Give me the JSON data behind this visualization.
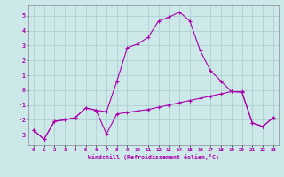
{
  "xlabel": "Windchill (Refroidissement éolien,°C)",
  "x_values": [
    0,
    1,
    2,
    3,
    4,
    5,
    6,
    7,
    8,
    9,
    10,
    11,
    12,
    13,
    14,
    15,
    16,
    17,
    18,
    19,
    20,
    21,
    22,
    23
  ],
  "y_main": [
    -2.7,
    -3.3,
    -2.1,
    -2.0,
    -1.85,
    -1.2,
    -1.35,
    -1.45,
    0.6,
    2.85,
    3.1,
    3.55,
    4.65,
    4.9,
    5.25,
    4.65,
    2.65,
    1.3,
    0.6,
    -0.1,
    -0.15,
    -2.2,
    -2.45,
    -1.85
  ],
  "y_flat": [
    -2.7,
    -3.3,
    -2.1,
    -2.0,
    -1.85,
    -1.2,
    -1.35,
    -2.95,
    -1.6,
    -1.5,
    -1.4,
    -1.3,
    -1.15,
    -1.0,
    -0.85,
    -0.7,
    -0.55,
    -0.4,
    -0.25,
    -0.1,
    -0.1,
    -2.2,
    -2.45,
    -1.85
  ],
  "line_color": "#aa00aa",
  "bg_color": "#cce8e8",
  "grid_color": "#aacccc",
  "ylim": [
    -3.7,
    5.7
  ],
  "xlim": [
    -0.5,
    23.5
  ],
  "yticks": [
    -3,
    -2,
    -1,
    0,
    1,
    2,
    3,
    4,
    5
  ],
  "xticks": [
    0,
    1,
    2,
    3,
    4,
    5,
    6,
    7,
    8,
    9,
    10,
    11,
    12,
    13,
    14,
    15,
    16,
    17,
    18,
    19,
    20,
    21,
    22,
    23
  ]
}
